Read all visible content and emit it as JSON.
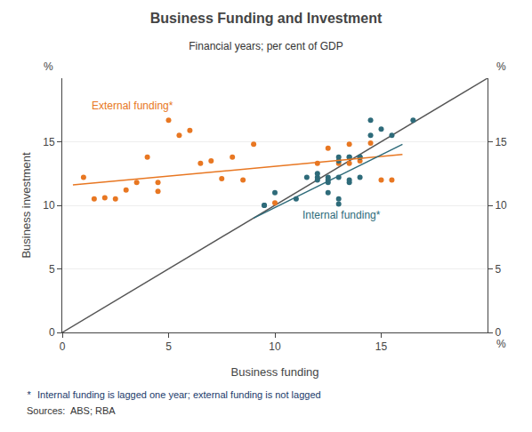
{
  "chart_data": {
    "type": "scatter",
    "title": "Business Funding and Investment",
    "subtitle": "Financial years; per cent of GDP",
    "x_label": "Business funding",
    "y_label": "Business investment",
    "axis_unit": "%",
    "footnote_marker": "*",
    "footnote": "Internal funding is lagged one year; external funding is not lagged",
    "sources": "Sources:  ABS; RBA",
    "xlim": [
      0,
      20
    ],
    "ylim": [
      0,
      20
    ],
    "y2lim": [
      0,
      20
    ],
    "xticks": [
      0,
      5,
      10,
      15
    ],
    "yticks": [
      0,
      5,
      10,
      15
    ],
    "y2ticks": [
      0,
      5,
      10,
      15
    ],
    "grid": "y",
    "series": [
      {
        "type": "line",
        "color": "#555555",
        "x": [
          0,
          20
        ],
        "values": [
          0,
          20
        ]
      },
      {
        "type": "scatter",
        "marker": "circle",
        "color": "#E87722",
        "x": [
          1.0,
          1.5,
          2.0,
          2.5,
          3.0,
          3.5,
          4.0,
          4.5,
          4.5,
          5.0,
          5.5,
          6.0,
          6.5,
          7.0,
          7.5,
          8.0,
          8.5,
          9.0,
          10.0,
          12.0,
          12.5,
          13.0,
          13.5,
          13.5,
          14.0,
          14.5,
          15.0,
          15.5
        ],
        "values": [
          12.2,
          10.5,
          10.6,
          10.5,
          11.2,
          11.8,
          13.8,
          11.8,
          11.1,
          16.7,
          15.5,
          15.9,
          13.3,
          13.5,
          12.1,
          13.8,
          12.0,
          14.8,
          10.2,
          13.3,
          14.5,
          13.3,
          13.3,
          14.8,
          13.5,
          14.9,
          12.0,
          12.0
        ]
      },
      {
        "type": "scatter",
        "marker": "circle",
        "color": "#2E6B7A",
        "x": [
          9.5,
          9.5,
          10.0,
          11.0,
          11.5,
          12.0,
          12.0,
          12.0,
          12.5,
          12.5,
          12.5,
          12.5,
          13.0,
          13.0,
          13.0,
          13.0,
          13.0,
          13.5,
          13.5,
          13.5,
          13.5,
          14.0,
          14.0,
          14.0,
          14.5,
          14.5,
          15.0,
          15.5,
          16.5
        ],
        "values": [
          10.0,
          10.0,
          11.0,
          10.5,
          12.2,
          12.2,
          12.0,
          12.5,
          11.8,
          12.2,
          12.0,
          11.0,
          13.8,
          13.5,
          10.1,
          10.5,
          12.2,
          13.8,
          13.8,
          11.8,
          12.0,
          13.8,
          13.8,
          12.2,
          15.5,
          16.7,
          16.0,
          15.5,
          16.7
        ]
      },
      {
        "type": "line",
        "color": "#E87722",
        "x": [
          0.5,
          16.0
        ],
        "values": [
          11.6,
          14.0
        ]
      },
      {
        "type": "line",
        "color": "#2E6B7A",
        "x": [
          9.0,
          16.0
        ],
        "values": [
          9.0,
          14.8
        ]
      }
    ],
    "annotations": [
      {
        "text": "External funding*",
        "x": 1.3,
        "y": 17.8,
        "color": "#E87722"
      },
      {
        "text": "Internal funding*",
        "x": 11.2,
        "y": 9.2,
        "color": "#2E6B7A"
      }
    ]
  }
}
